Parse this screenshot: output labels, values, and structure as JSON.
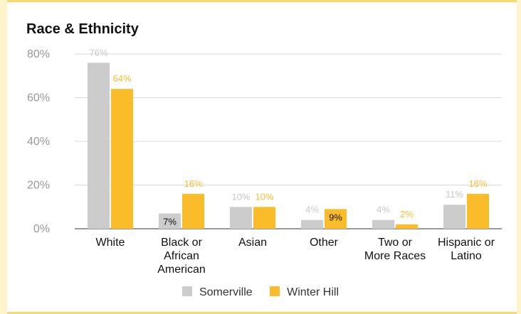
{
  "colors": {
    "somerville": "#cccccc",
    "winter_hill": "#fbbc2a",
    "frame": "#fcd86a",
    "grid": "#d9d9d9",
    "axis_label": "#999999"
  },
  "chart_data": {
    "type": "bar",
    "title": "Race & Ethnicity",
    "categories": [
      [
        "White"
      ],
      [
        "Black or",
        "African",
        "American"
      ],
      [
        "Asian"
      ],
      [
        "Other"
      ],
      [
        "Two or",
        "More Races"
      ],
      [
        "Hispanic or",
        "Latino"
      ]
    ],
    "series": [
      {
        "name": "Somerville",
        "values": [
          76,
          7,
          10,
          4,
          4,
          11
        ],
        "labels": [
          "76%",
          "7%",
          "10%",
          "4%",
          "4%",
          "11%"
        ]
      },
      {
        "name": "Winter Hill",
        "values": [
          64,
          16,
          10,
          9,
          2,
          16
        ],
        "labels": [
          "64%",
          "16%",
          "10%",
          "9%",
          "2%",
          "16%"
        ]
      }
    ],
    "yticks": [
      "0%",
      "20%",
      "40%",
      "60%",
      "80%"
    ],
    "ylim": [
      0,
      80
    ],
    "grid": true,
    "legend_position": "bottom"
  }
}
